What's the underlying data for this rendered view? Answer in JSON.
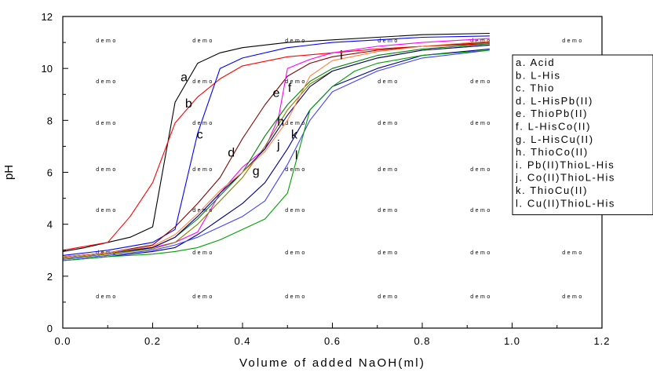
{
  "chart_data": {
    "type": "line",
    "title": "",
    "xlabel": "Volume of added NaOH(ml)",
    "ylabel": "pH",
    "xlim": [
      0.0,
      1.2
    ],
    "ylim": [
      0,
      12
    ],
    "xticks": [
      0.0,
      0.2,
      0.4,
      0.6,
      0.8,
      1.0,
      1.2
    ],
    "xtick_labels": [
      "0.0",
      "0.2",
      "0.4",
      "0.6",
      "0.8",
      "1.0",
      "1.2"
    ],
    "yticks": [
      0,
      2,
      4,
      6,
      8,
      10,
      12
    ],
    "ytick_labels": [
      "0",
      "2",
      "4",
      "6",
      "8",
      "10",
      "12"
    ],
    "grid": false,
    "legend_position": "right",
    "watermark_text": "demo",
    "watermark_color": "#33ccff",
    "series": [
      {
        "letter": "a",
        "name": "Acid",
        "color": "#000000",
        "x": [
          0.0,
          0.05,
          0.1,
          0.15,
          0.2,
          0.25,
          0.3,
          0.35,
          0.4,
          0.5,
          0.6,
          0.7,
          0.8,
          0.95
        ],
        "y": [
          2.95,
          3.1,
          3.3,
          3.5,
          3.9,
          8.7,
          10.2,
          10.6,
          10.8,
          11.0,
          11.1,
          11.2,
          11.3,
          11.35
        ],
        "label_at": [
          0.27,
          9.5
        ]
      },
      {
        "letter": "b",
        "name": "L-His",
        "color": "#ff0000",
        "x": [
          0.0,
          0.05,
          0.1,
          0.15,
          0.2,
          0.25,
          0.3,
          0.35,
          0.4,
          0.5,
          0.6,
          0.7,
          0.8,
          0.95
        ],
        "y": [
          3.0,
          3.15,
          3.3,
          4.3,
          5.6,
          7.9,
          8.9,
          9.6,
          10.1,
          10.45,
          10.6,
          10.75,
          10.85,
          10.95
        ],
        "label_at": [
          0.28,
          8.5
        ]
      },
      {
        "letter": "c",
        "name": "Thio",
        "color": "#0000ff",
        "x": [
          0.0,
          0.1,
          0.2,
          0.25,
          0.3,
          0.35,
          0.4,
          0.5,
          0.6,
          0.7,
          0.8,
          0.95
        ],
        "y": [
          2.8,
          3.0,
          3.3,
          3.8,
          7.5,
          10.0,
          10.4,
          10.8,
          11.0,
          11.1,
          11.2,
          11.25
        ],
        "label_at": [
          0.305,
          7.3
        ]
      },
      {
        "letter": "d",
        "name": "L-HisPb(II)",
        "color": "#800000",
        "x": [
          0.0,
          0.1,
          0.2,
          0.25,
          0.3,
          0.35,
          0.4,
          0.45,
          0.5,
          0.55,
          0.6,
          0.7,
          0.8,
          0.95
        ],
        "y": [
          2.75,
          2.9,
          3.2,
          3.9,
          4.8,
          5.8,
          7.3,
          8.6,
          9.7,
          10.2,
          10.45,
          10.7,
          10.85,
          11.0
        ],
        "label_at": [
          0.375,
          6.6
        ]
      },
      {
        "letter": "e",
        "name": "ThioPb(II)",
        "color": "#ff00ff",
        "x": [
          0.0,
          0.1,
          0.2,
          0.25,
          0.3,
          0.35,
          0.4,
          0.45,
          0.48,
          0.5,
          0.55,
          0.6,
          0.7,
          0.8,
          0.95
        ],
        "y": [
          2.7,
          2.85,
          3.1,
          3.3,
          3.7,
          5.2,
          6.2,
          6.9,
          8.1,
          10.0,
          10.35,
          10.6,
          10.85,
          11.0,
          11.15
        ],
        "label_at": [
          0.475,
          8.9
        ]
      },
      {
        "letter": "f",
        "name": "L-HisCo(II)",
        "color": "#008000",
        "x": [
          0.0,
          0.1,
          0.2,
          0.25,
          0.3,
          0.35,
          0.4,
          0.45,
          0.5,
          0.55,
          0.6,
          0.7,
          0.8,
          0.95
        ],
        "y": [
          2.7,
          2.85,
          3.1,
          3.5,
          4.2,
          5.1,
          6.0,
          7.4,
          8.6,
          9.5,
          10.0,
          10.5,
          10.75,
          10.95
        ],
        "label_at": [
          0.505,
          9.1
        ]
      },
      {
        "letter": "g",
        "name": "L-HisCu(II)",
        "color": "#808000",
        "x": [
          0.0,
          0.1,
          0.2,
          0.25,
          0.3,
          0.35,
          0.4,
          0.45,
          0.5,
          0.55,
          0.6,
          0.7,
          0.8,
          0.95
        ],
        "y": [
          2.7,
          2.85,
          3.05,
          3.3,
          4.0,
          4.9,
          5.8,
          7.0,
          8.4,
          9.4,
          9.9,
          10.4,
          10.7,
          10.9
        ],
        "label_at": [
          0.43,
          5.9
        ]
      },
      {
        "letter": "h",
        "name": "ThioCo(II)",
        "color": "#000080",
        "x": [
          0.0,
          0.1,
          0.2,
          0.25,
          0.3,
          0.35,
          0.4,
          0.45,
          0.5,
          0.55,
          0.6,
          0.7,
          0.8,
          0.95
        ],
        "y": [
          2.75,
          2.9,
          3.1,
          3.5,
          4.3,
          5.2,
          6.0,
          6.9,
          8.2,
          9.3,
          9.9,
          10.4,
          10.7,
          10.9
        ],
        "label_at": [
          0.485,
          7.8
        ]
      },
      {
        "letter": "i",
        "name": "Pb(II)ThioL-His",
        "color": "#ff8040",
        "x": [
          0.0,
          0.1,
          0.2,
          0.25,
          0.3,
          0.35,
          0.4,
          0.45,
          0.5,
          0.55,
          0.6,
          0.7,
          0.8,
          0.95
        ],
        "y": [
          2.75,
          2.9,
          3.15,
          3.6,
          4.4,
          5.3,
          6.0,
          6.8,
          8.0,
          9.7,
          10.3,
          10.65,
          10.85,
          11.05
        ],
        "label_at": [
          0.62,
          10.35
        ]
      },
      {
        "letter": "j",
        "name": "Co(II)ThioL-His",
        "color": "#00008b",
        "x": [
          0.0,
          0.1,
          0.2,
          0.25,
          0.3,
          0.35,
          0.4,
          0.45,
          0.5,
          0.55,
          0.6,
          0.7,
          0.8,
          0.95
        ],
        "y": [
          2.6,
          2.75,
          2.95,
          3.1,
          3.6,
          4.2,
          4.8,
          5.6,
          6.9,
          8.4,
          9.3,
          10.0,
          10.5,
          10.75
        ],
        "label_at": [
          0.48,
          6.9
        ]
      },
      {
        "letter": "k",
        "name": "ThioCu(II)",
        "color": "#4040ff",
        "x": [
          0.0,
          0.1,
          0.2,
          0.25,
          0.3,
          0.35,
          0.4,
          0.45,
          0.5,
          0.55,
          0.6,
          0.7,
          0.8,
          0.95
        ],
        "y": [
          2.65,
          2.8,
          3.0,
          3.2,
          3.5,
          3.9,
          4.3,
          4.9,
          6.3,
          8.0,
          9.1,
          9.9,
          10.4,
          10.7
        ],
        "label_at": [
          0.515,
          7.3
        ]
      },
      {
        "letter": "l",
        "name": "Cu(II)ThioL-His",
        "color": "#00a000",
        "x": [
          0.0,
          0.1,
          0.2,
          0.25,
          0.3,
          0.35,
          0.4,
          0.45,
          0.5,
          0.55,
          0.6,
          0.65,
          0.7,
          0.8,
          0.95
        ],
        "y": [
          2.6,
          2.75,
          2.85,
          2.95,
          3.1,
          3.4,
          3.8,
          4.2,
          5.2,
          8.4,
          9.3,
          9.9,
          10.2,
          10.5,
          10.7
        ],
        "label_at": [
          0.52,
          6.5
        ]
      }
    ]
  }
}
